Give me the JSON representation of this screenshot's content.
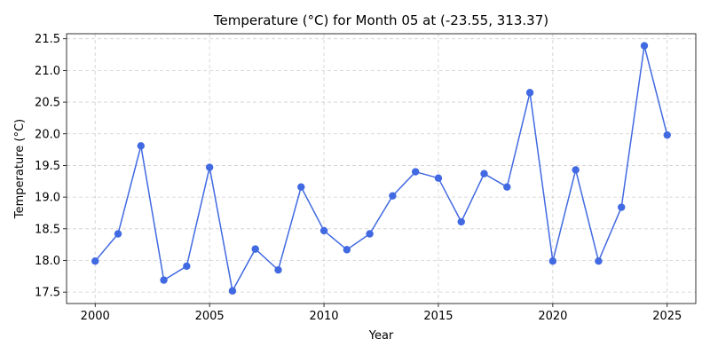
{
  "chart_data": {
    "type": "line",
    "title": "Temperature (°C) for Month 05 at (-23.55, 313.37)",
    "xlabel": "Year",
    "ylabel": "Temperature (°C)",
    "xlim": [
      1998.75,
      2026.25
    ],
    "ylim": [
      17.32,
      21.58
    ],
    "xticks": [
      2000,
      2005,
      2010,
      2015,
      2020,
      2025
    ],
    "yticks": [
      17.5,
      18.0,
      18.5,
      19.0,
      19.5,
      20.0,
      20.5,
      21.0,
      21.5
    ],
    "ytick_labels": [
      "17.5",
      "18.0",
      "18.5",
      "19.0",
      "19.5",
      "20.0",
      "20.5",
      "21.0",
      "21.5"
    ],
    "grid": true,
    "color": "#4169e1",
    "series": [
      {
        "x": [
          2000,
          2001,
          2002,
          2003,
          2004,
          2005,
          2006,
          2007,
          2008,
          2009,
          2010,
          2011,
          2012,
          2013,
          2014,
          2015,
          2016,
          2017,
          2018,
          2019,
          2020,
          2021,
          2022,
          2023,
          2024,
          2025
        ],
        "values": [
          17.99,
          18.42,
          19.81,
          17.69,
          17.91,
          19.47,
          17.52,
          18.18,
          17.85,
          19.16,
          18.47,
          18.17,
          18.42,
          19.02,
          19.4,
          19.3,
          18.61,
          19.37,
          19.16,
          20.65,
          17.99,
          19.43,
          17.99,
          18.84,
          21.39,
          19.98
        ]
      }
    ]
  }
}
